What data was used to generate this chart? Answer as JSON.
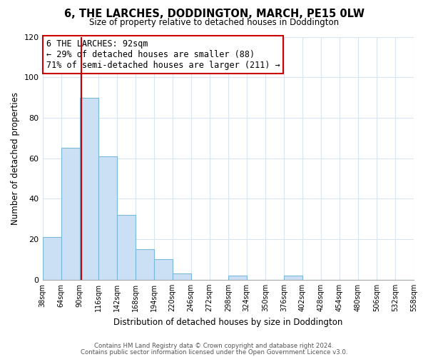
{
  "title": "6, THE LARCHES, DODDINGTON, MARCH, PE15 0LW",
  "subtitle": "Size of property relative to detached houses in Doddington",
  "xlabel": "Distribution of detached houses by size in Doddington",
  "ylabel": "Number of detached properties",
  "bar_color": "#cce0f5",
  "bar_edge_color": "#7ab8d9",
  "bin_edges": [
    38,
    64,
    90,
    116,
    142,
    168,
    194,
    220,
    246,
    272,
    298,
    324,
    350,
    376,
    402,
    428,
    454,
    480,
    506,
    532,
    558
  ],
  "counts": [
    21,
    65,
    90,
    61,
    32,
    15,
    10,
    3,
    0,
    0,
    2,
    0,
    0,
    2,
    0,
    0,
    0,
    0,
    0,
    0
  ],
  "property_size": 92,
  "vline_color": "#cc0000",
  "annotation_line1": "6 THE LARCHES: 92sqm",
  "annotation_line2": "← 29% of detached houses are smaller (88)",
  "annotation_line3": "71% of semi-detached houses are larger (211) →",
  "annotation_box_color": "#ffffff",
  "annotation_box_edge_color": "#cc0000",
  "ylim": [
    0,
    120
  ],
  "yticks": [
    0,
    20,
    40,
    60,
    80,
    100,
    120
  ],
  "tick_labels": [
    "38sqm",
    "64sqm",
    "90sqm",
    "116sqm",
    "142sqm",
    "168sqm",
    "194sqm",
    "220sqm",
    "246sqm",
    "272sqm",
    "298sqm",
    "324sqm",
    "350sqm",
    "376sqm",
    "402sqm",
    "428sqm",
    "454sqm",
    "480sqm",
    "506sqm",
    "532sqm",
    "558sqm"
  ],
  "footer_line1": "Contains HM Land Registry data © Crown copyright and database right 2024.",
  "footer_line2": "Contains public sector information licensed under the Open Government Licence v3.0.",
  "background_color": "#ffffff",
  "grid_color": "#d8e4f0",
  "title_fontsize": 10.5,
  "subtitle_fontsize": 8.5,
  "ylabel_fontsize": 8.5,
  "xlabel_fontsize": 8.5
}
